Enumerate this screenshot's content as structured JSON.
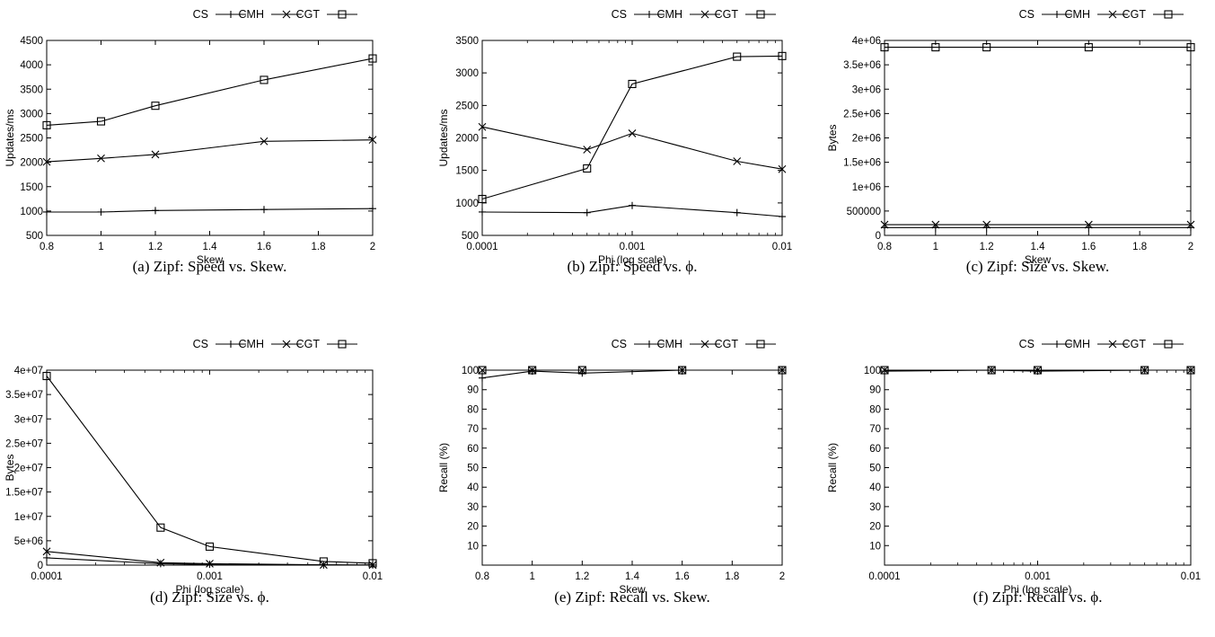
{
  "legend": [
    "CS",
    "CMH",
    "CGT"
  ],
  "chart_data": [
    {
      "type": "line",
      "caption": "(a) Zipf: Speed vs. Skew.",
      "xlabel": "Skew",
      "ylabel": "Updates/ms",
      "xscale": "linear",
      "xlim": [
        0.8,
        2
      ],
      "ylim": [
        500,
        4500
      ],
      "x": [
        0.8,
        1,
        1.2,
        1.6,
        2
      ],
      "xticks": [
        0.8,
        1,
        1.2,
        1.4,
        1.6,
        1.8,
        2
      ],
      "xtick_labels": [
        "0.8",
        "1",
        "1.2",
        "1.4",
        "1.6",
        "1.8",
        "2"
      ],
      "yticks": [
        500,
        1000,
        1500,
        2000,
        2500,
        3000,
        3500,
        4000,
        4500
      ],
      "ytick_labels": [
        "500",
        "1000",
        "1500",
        "2000",
        "2500",
        "3000",
        "3500",
        "4000",
        "4500"
      ],
      "series": [
        {
          "name": "CS",
          "marker": "plus",
          "values": [
            980,
            980,
            1010,
            1030,
            1050
          ]
        },
        {
          "name": "CMH",
          "marker": "x",
          "values": [
            2010,
            2080,
            2160,
            2430,
            2460
          ]
        },
        {
          "name": "CGT",
          "marker": "square",
          "values": [
            2760,
            2840,
            3160,
            3690,
            4130
          ]
        }
      ]
    },
    {
      "type": "line",
      "caption": "(b) Zipf: Speed vs. ϕ.",
      "xlabel": "Phi (log scale)",
      "ylabel": "Updates/ms",
      "xscale": "log",
      "xlim": [
        0.0001,
        0.01
      ],
      "ylim": [
        500,
        3500
      ],
      "x": [
        0.0001,
        0.0005,
        0.001,
        0.005,
        0.01
      ],
      "xticks": [
        0.0001,
        0.001,
        0.01
      ],
      "xtick_labels": [
        "0.0001",
        "0.001",
        "0.01"
      ],
      "yticks": [
        500,
        1000,
        1500,
        2000,
        2500,
        3000,
        3500
      ],
      "ytick_labels": [
        "500",
        "1000",
        "1500",
        "2000",
        "2500",
        "3000",
        "3500"
      ],
      "series": [
        {
          "name": "CS",
          "marker": "plus",
          "values": [
            860,
            850,
            960,
            850,
            790
          ]
        },
        {
          "name": "CMH",
          "marker": "x",
          "values": [
            2170,
            1820,
            2070,
            1640,
            1520
          ]
        },
        {
          "name": "CGT",
          "marker": "square",
          "values": [
            1060,
            1530,
            2830,
            3250,
            3260
          ]
        }
      ]
    },
    {
      "type": "line",
      "caption": "(c) Zipf: Size vs. Skew.",
      "xlabel": "Skew",
      "ylabel": "Bytes",
      "xscale": "linear",
      "xlim": [
        0.8,
        2
      ],
      "ylim": [
        0,
        4000000
      ],
      "x": [
        0.8,
        1,
        1.2,
        1.6,
        2
      ],
      "xticks": [
        0.8,
        1,
        1.2,
        1.4,
        1.6,
        1.8,
        2
      ],
      "xtick_labels": [
        "0.8",
        "1",
        "1.2",
        "1.4",
        "1.6",
        "1.8",
        "2"
      ],
      "yticks": [
        0,
        500000,
        1000000,
        1500000,
        2000000,
        2500000,
        3000000,
        3500000,
        4000000
      ],
      "ytick_labels": [
        "0",
        "500000",
        "1e+06",
        "1.5e+06",
        "2e+06",
        "2.5e+06",
        "3e+06",
        "3.5e+06",
        "4e+06"
      ],
      "series": [
        {
          "name": "CS",
          "marker": "plus",
          "values": [
            160000,
            160000,
            160000,
            160000,
            160000
          ]
        },
        {
          "name": "CMH",
          "marker": "x",
          "values": [
            220000,
            220000,
            220000,
            220000,
            220000
          ]
        },
        {
          "name": "CGT",
          "marker": "square",
          "values": [
            3860000,
            3860000,
            3860000,
            3860000,
            3860000
          ]
        }
      ]
    },
    {
      "type": "line",
      "caption": "(d) Zipf: Size vs. ϕ.",
      "xlabel": "Phi (log scale)",
      "ylabel": "Bytes",
      "xscale": "log",
      "xlim": [
        0.0001,
        0.01
      ],
      "ylim": [
        0,
        40000000
      ],
      "x": [
        0.0001,
        0.0005,
        0.001,
        0.005,
        0.01
      ],
      "xticks": [
        0.0001,
        0.001,
        0.01
      ],
      "xtick_labels": [
        "0.0001",
        "0.001",
        "0.01"
      ],
      "yticks": [
        0,
        5000000,
        10000000,
        15000000,
        20000000,
        25000000,
        30000000,
        35000000,
        40000000
      ],
      "ytick_labels": [
        "0",
        "5e+06",
        "1e+07",
        "1.5e+07",
        "2e+07",
        "2.5e+07",
        "3e+07",
        "3.5e+07",
        "4e+07"
      ],
      "series": [
        {
          "name": "CS",
          "marker": "plus",
          "values": [
            1500000,
            300000,
            150000,
            30000,
            15000
          ]
        },
        {
          "name": "CMH",
          "marker": "x",
          "values": [
            2800000,
            500000,
            300000,
            60000,
            30000
          ]
        },
        {
          "name": "CGT",
          "marker": "square",
          "values": [
            38800000,
            7700000,
            3800000,
            750000,
            380000
          ]
        }
      ]
    },
    {
      "type": "line",
      "caption": "(e) Zipf: Recall vs. Skew.",
      "xlabel": "Skew",
      "ylabel": "Recall (%)",
      "xscale": "linear",
      "xlim": [
        0.8,
        2
      ],
      "ylim": [
        0,
        100
      ],
      "x": [
        0.8,
        1,
        1.2,
        1.6,
        2
      ],
      "xticks": [
        0.8,
        1,
        1.2,
        1.4,
        1.6,
        1.8,
        2
      ],
      "xtick_labels": [
        "0.8",
        "1",
        "1.2",
        "1.4",
        "1.6",
        "1.8",
        "2"
      ],
      "yticks": [
        10,
        20,
        30,
        40,
        50,
        60,
        70,
        80,
        90,
        100
      ],
      "ytick_labels": [
        "10",
        "20",
        "30",
        "40",
        "50",
        "60",
        "70",
        "80",
        "90",
        "100"
      ],
      "series": [
        {
          "name": "CS",
          "marker": "plus",
          "values": [
            96,
            99.5,
            98.5,
            100,
            100
          ]
        },
        {
          "name": "CMH",
          "marker": "x",
          "values": [
            100,
            100,
            100,
            100,
            100
          ]
        },
        {
          "name": "CGT",
          "marker": "square",
          "values": [
            100,
            100,
            100,
            100,
            100
          ]
        }
      ]
    },
    {
      "type": "line",
      "caption": "(f) Zipf: Recall vs. ϕ.",
      "xlabel": "Phi (log scale)",
      "ylabel": "Recall (%)",
      "xscale": "log",
      "xlim": [
        0.0001,
        0.01
      ],
      "ylim": [
        0,
        100
      ],
      "x": [
        0.0001,
        0.0005,
        0.001,
        0.005,
        0.01
      ],
      "xticks": [
        0.0001,
        0.001,
        0.01
      ],
      "xtick_labels": [
        "0.0001",
        "0.001",
        "0.01"
      ],
      "yticks": [
        10,
        20,
        30,
        40,
        50,
        60,
        70,
        80,
        90,
        100
      ],
      "ytick_labels": [
        "10",
        "20",
        "30",
        "40",
        "50",
        "60",
        "70",
        "80",
        "90",
        "100"
      ],
      "series": [
        {
          "name": "CS",
          "marker": "plus",
          "values": [
            99.5,
            100,
            99.5,
            100,
            100
          ]
        },
        {
          "name": "CMH",
          "marker": "x",
          "values": [
            100,
            100,
            100,
            100,
            100
          ]
        },
        {
          "name": "CGT",
          "marker": "square",
          "values": [
            100,
            100,
            100,
            100,
            100
          ]
        }
      ]
    }
  ]
}
